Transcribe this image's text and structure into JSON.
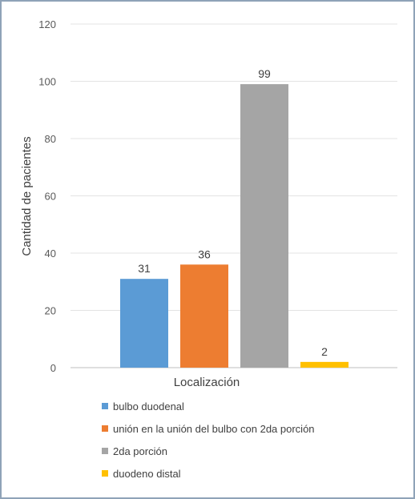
{
  "chart_data": {
    "type": "bar",
    "title": "",
    "xlabel": "Localización",
    "ylabel": "Cantidad de pacientes",
    "ylim": [
      0,
      120
    ],
    "yticks": [
      0,
      20,
      40,
      60,
      80,
      100,
      120
    ],
    "grid": true,
    "legend_position": "bottom",
    "series": [
      {
        "name": "bulbo duodenal",
        "value": 31,
        "label": "31",
        "color": "#5b9bd5"
      },
      {
        "name": "unión en la unión del bulbo con 2da porción",
        "value": 36,
        "label": "36",
        "color": "#ed7d31"
      },
      {
        "name": "2da porción",
        "value": 99,
        "label": "99",
        "color": "#a5a5a5"
      },
      {
        "name": "duodeno distal",
        "value": 2,
        "label": "2",
        "color": "#ffc000"
      }
    ]
  }
}
